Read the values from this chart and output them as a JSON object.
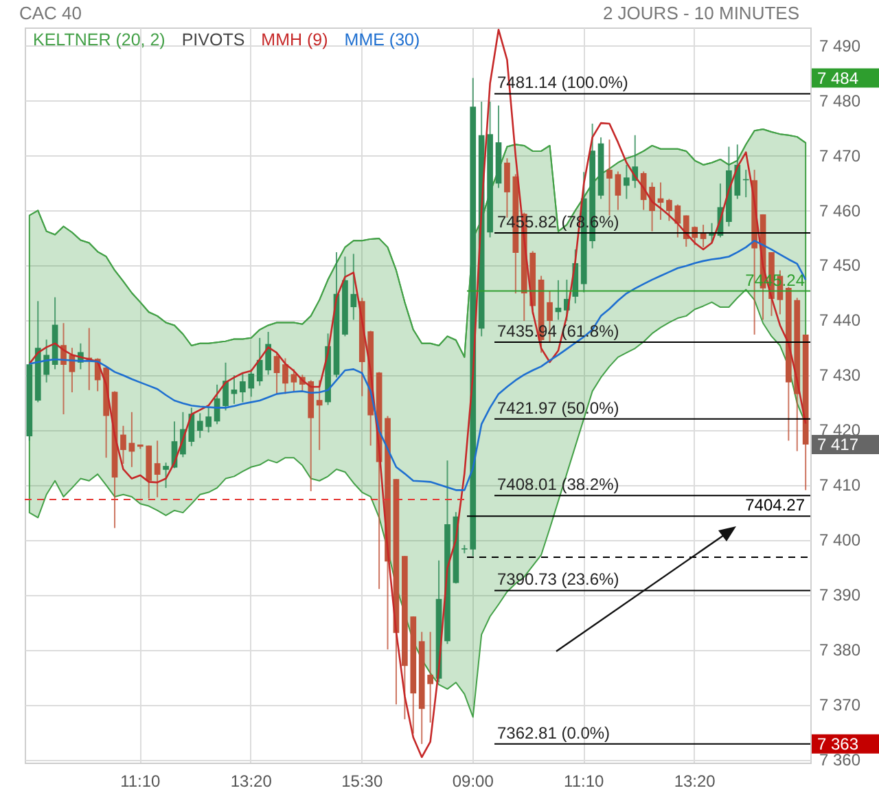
{
  "chart_data": {
    "type": "candlestick",
    "title": "CAC 40",
    "subtitle": "2 JOURS - 10 MINUTES",
    "categories": [
      null,
      null,
      null,
      null,
      null,
      null,
      null,
      null,
      null,
      null,
      null,
      null,
      null,
      "11:10",
      null,
      null,
      null,
      null,
      null,
      null,
      null,
      null,
      null,
      null,
      null,
      null,
      "13:20",
      null,
      null,
      null,
      null,
      null,
      null,
      null,
      null,
      null,
      null,
      null,
      null,
      "15:30",
      null,
      null,
      null,
      null,
      null,
      null,
      null,
      null,
      null,
      null,
      null,
      null,
      "09:00",
      null,
      null,
      null,
      null,
      null,
      null,
      null,
      null,
      null,
      null,
      null,
      null,
      "11:10",
      null,
      null,
      null,
      null,
      null,
      null,
      null,
      null,
      null,
      null,
      null,
      null,
      "13:20",
      null,
      null,
      null,
      null,
      null,
      null,
      null,
      null,
      null,
      null,
      null,
      null,
      null
    ],
    "ohlc": [
      [
        7418.8,
        7432,
        7418,
        7431.9
      ],
      [
        7425.3,
        7443.4,
        7425,
        7434.9
      ],
      [
        7430,
        7436.4,
        7428.6,
        7433.6
      ],
      [
        7431.8,
        7444.1,
        7431,
        7439.1
      ],
      [
        7435.4,
        7439.4,
        7422.8,
        7431.8
      ],
      [
        7433.6,
        7434.9,
        7426.8,
        7430.5
      ],
      [
        7432.2,
        7435.7,
        7431,
        7434.1
      ],
      [
        7433.1,
        7438.5,
        7427.2,
        7432.5
      ],
      [
        7432.9,
        7433,
        7427,
        7429
      ],
      [
        7431.3,
        7431.5,
        7414.9,
        7422.5
      ],
      [
        7426.9,
        7427,
        7402.1,
        7411.3
      ],
      [
        7419.1,
        7420.7,
        7413.8,
        7416.3
      ],
      [
        7417.6,
        7423.2,
        7413.2,
        7416
      ],
      [
        7417.3,
        7417.3,
        7416.5,
        7416.9
      ],
      [
        7417.1,
        7417.1,
        7407.5,
        7410.7
      ],
      [
        7413.9,
        7418,
        7407.7,
        7411.8
      ],
      [
        7412.7,
        7414,
        7409.4,
        7413.4
      ],
      [
        7413.1,
        7421.5,
        7413,
        7417.9
      ],
      [
        7415.5,
        7423.2,
        7415,
        7420.1
      ],
      [
        7417.8,
        7424,
        7417,
        7422.9
      ],
      [
        7419.8,
        7423,
        7418.5,
        7421.6
      ],
      [
        7420.5,
        7424,
        7419.5,
        7422.4
      ],
      [
        7421.5,
        7428.2,
        7421,
        7425.7
      ],
      [
        7424.3,
        7432.2,
        7423.5,
        7428.9
      ],
      [
        7426.5,
        7429.9,
        7424.7,
        7427.3
      ],
      [
        7426.8,
        7430.3,
        7425,
        7428.8
      ],
      [
        7427.5,
        7431,
        7426,
        7430.2
      ],
      [
        7428.8,
        7436.7,
        7428,
        7432.7
      ],
      [
        7430.8,
        7437.8,
        7430,
        7435.6
      ],
      [
        7433.4,
        7434,
        7426.5,
        7430.3
      ],
      [
        7431.9,
        7433,
        7426.5,
        7428.4
      ],
      [
        7430.1,
        7431,
        7427,
        7428.6
      ],
      [
        7429.6,
        7430,
        7427,
        7428.2
      ],
      [
        7428.8,
        7429,
        7408.8,
        7422.1
      ],
      [
        7425.4,
        7429,
        7416.3,
        7424.4
      ],
      [
        7425,
        7437.5,
        7424.5,
        7435.2
      ],
      [
        7430,
        7452.3,
        7429.5,
        7444.7
      ],
      [
        7437.3,
        7451.5,
        7437,
        7447.2
      ],
      [
        7442.3,
        7452,
        7440,
        7444.7
      ],
      [
        7443.4,
        7444,
        7426.1,
        7432.3
      ],
      [
        7437.9,
        7438,
        7417.1,
        7422.6
      ],
      [
        7430.4,
        7430.5,
        7391,
        7414.1
      ],
      [
        7422.1,
        7422.5,
        7380,
        7396
      ],
      [
        7411,
        7411,
        7370,
        7383
      ],
      [
        7397,
        7397,
        7367.3,
        7377
      ],
      [
        7386,
        7386,
        7364.7,
        7372
      ],
      [
        7381.5,
        7383.2,
        7362.8,
        7369.2
      ],
      [
        7375.4,
        7383.2,
        7366.7,
        7373.7
      ],
      [
        7374.7,
        7396.2,
        7374,
        7389.2
      ],
      [
        7381.5,
        7414.4,
        7381,
        7402.8
      ],
      [
        7392.1,
        7405,
        7392,
        7404.2
      ],
      [
        7398.2,
        7399,
        7397.5,
        7398.4
      ],
      [
        7398.2,
        7484,
        7397,
        7478.8
      ],
      [
        7438.4,
        7479.7,
        7437,
        7473.6
      ],
      [
        7455.9,
        7479.7,
        7455,
        7473.8
      ],
      [
        7464.8,
        7479,
        7464,
        7472.3
      ],
      [
        7468.6,
        7469.4,
        7458.6,
        7463.2
      ],
      [
        7466.1,
        7466.5,
        7444.8,
        7452.2
      ],
      [
        7459.3,
        7459.5,
        7439.8,
        7444.8
      ],
      [
        7452.2,
        7452.5,
        7441,
        7442.5
      ],
      [
        7447.3,
        7448,
        7434,
        7436.3
      ],
      [
        7443.2,
        7445.3,
        7436,
        7439.8
      ],
      [
        7441.4,
        7447.2,
        7440,
        7442.2
      ],
      [
        7441.7,
        7447.3,
        7439.8,
        7443.8
      ],
      [
        7444.2,
        7452.8,
        7443,
        7450.3
      ],
      [
        7446.5,
        7466.9,
        7445,
        7462.1
      ],
      [
        7454.3,
        7475.7,
        7453,
        7470.8
      ],
      [
        7462.6,
        7473.2,
        7462,
        7472.1
      ],
      [
        7467.3,
        7472.8,
        7459,
        7465.7
      ],
      [
        7466.5,
        7467,
        7460,
        7462.6
      ],
      [
        7464.4,
        7468.2,
        7462,
        7465.9
      ],
      [
        7465.3,
        7473.6,
        7464,
        7467.9
      ],
      [
        7466.7,
        7467,
        7460,
        7461.8
      ],
      [
        7464.2,
        7465,
        7456.1,
        7459.8
      ],
      [
        7462.1,
        7465,
        7458.2,
        7461.3
      ],
      [
        7461.8,
        7462,
        7458,
        7459.8
      ],
      [
        7460.8,
        7461,
        7455,
        7457.5
      ],
      [
        7459,
        7459,
        7453.3,
        7454.7
      ],
      [
        7456.9,
        7457,
        7453.6,
        7454.9
      ],
      [
        7455.8,
        7457.3,
        7453.2,
        7454.7
      ],
      [
        7455.3,
        7457.6,
        7454,
        7455.8
      ],
      [
        7455.3,
        7464.8,
        7455,
        7460.5
      ],
      [
        7457.8,
        7471.5,
        7457,
        7467.2
      ],
      [
        7462.6,
        7471.9,
        7462,
        7468.2
      ],
      [
        7465.4,
        7467.3,
        7462.3,
        7465.6
      ],
      [
        7465.4,
        7467.3,
        7437.3,
        7453
      ],
      [
        7459.2,
        7459.2,
        7440,
        7445.7
      ],
      [
        7452.3,
        7452.3,
        7440.7,
        7443.8
      ],
      [
        7448,
        7449,
        7441,
        7443.6
      ],
      [
        7445.8,
        7446,
        7418,
        7428.6
      ],
      [
        7443.6,
        7444,
        7416.1,
        7426.5
      ],
      [
        7437.3,
        7437.3,
        7409,
        7417.3
      ]
    ],
    "colors": [
      "#2e8b57",
      "#2e8b57",
      "#2e8b57",
      "#2e8b57",
      "#c0533a",
      "#c0533a",
      "#2e8b57",
      "#c0533a",
      "#c0533a",
      "#c0533a",
      "#c0533a",
      "#c0533a",
      "#c0533a",
      "#c0533a",
      "#c0533a",
      "#c0533a",
      "#2e8b57",
      "#2e8b57",
      "#2e8b57",
      "#2e8b57",
      "#2e8b57",
      "#2e8b57",
      "#2e8b57",
      "#2e8b57",
      "#2e8b57",
      "#2e8b57",
      "#2e8b57",
      "#2e8b57",
      "#2e8b57",
      "#c0533a",
      "#c0533a",
      "#c0533a",
      "#c0533a",
      "#c0533a",
      "#c0533a",
      "#2e8b57",
      "#2e8b57",
      "#2e8b57",
      "#2e8b57",
      "#c0533a",
      "#c0533a",
      "#c0533a",
      "#c0533a",
      "#c0533a",
      "#c0533a",
      "#c0533a",
      "#c0533a",
      "#c0533a",
      "#2e8b57",
      "#2e8b57",
      "#2e8b57",
      "#2e8b57",
      "#2e8b57",
      "#2e8b57",
      "#2e8b57",
      "#2e8b57",
      "#c0533a",
      "#c0533a",
      "#c0533a",
      "#c0533a",
      "#c0533a",
      "#c0533a",
      "#2e8b57",
      "#2e8b57",
      "#2e8b57",
      "#2e8b57",
      "#2e8b57",
      "#2e8b57",
      "#c0533a",
      "#c0533a",
      "#2e8b57",
      "#2e8b57",
      "#c0533a",
      "#c0533a",
      "#c0533a",
      "#c0533a",
      "#c0533a",
      "#c0533a",
      "#c0533a",
      "#c0533a",
      "#2e8b57",
      "#2e8b57",
      "#2e8b57",
      "#2e8b57",
      "#2e8b57",
      "#c0533a",
      "#c0533a",
      "#c0533a",
      "#c0533a",
      "#c0533a",
      "#c0533a",
      "#c0533a"
    ],
    "series": [
      {
        "name": "KELTNER (20, 2)",
        "type": "line",
        "color": "#43a047",
        "values": [
          7459,
          7459.9,
          7456.1,
          7455.5,
          7457,
          7455.9,
          7454.5,
          7454,
          7452.4,
          7451.5,
          7449,
          7447,
          7444.9,
          7443.2,
          7441.4,
          7440.7,
          7439.5,
          7439,
          7437.4,
          7435.3,
          7435.7,
          7435.7,
          7435.9,
          7436.1,
          7436.5,
          7436.5,
          7436.7,
          7438.2,
          7439,
          7439.5,
          7439.5,
          7439.5,
          7439.2,
          7440.7,
          7443.6,
          7447.3,
          7450.3,
          7453.2,
          7454.4,
          7454.4,
          7454.7,
          7454.8,
          7453.2,
          7449,
          7443.2,
          7438.2,
          7435.7,
          7435.7,
          7435.3,
          7437,
          7436.3,
          7433.2,
          7454.8,
          7458.2,
          7463.2,
          7467.3,
          7471.5,
          7471.9,
          7471.7,
          7470.7,
          7470.7,
          7471.7,
          7456.1,
          7457.3,
          7459.9,
          7462.3,
          7464.8,
          7466.5,
          7467.5,
          7468.6,
          7469.4,
          7469.9,
          7470.7,
          7471.7,
          7471.1,
          7471.1,
          7471.1,
          7470.7,
          7469,
          7468.2,
          7468.6,
          7469.2,
          7468.2,
          7469,
          7471.9,
          7474.4,
          7474.7,
          7474.2,
          7473.8,
          7473.6,
          7473.3,
          7472.2
        ],
        "lower": [
          7404.9,
          7404,
          7408.2,
          7410.7,
          7407.8,
          7409.4,
          7411.1,
          7410.7,
          7411.9,
          7409.9,
          7407.8,
          7408.2,
          7407.8,
          7406.5,
          7406.1,
          7405.3,
          7404.4,
          7405.3,
          7404.9,
          7406.5,
          7408.2,
          7408.6,
          7409.4,
          7411.1,
          7411.5,
          7412.4,
          7413.2,
          7413.6,
          7414.5,
          7414,
          7414.9,
          7414.9,
          7413.5,
          7411.1,
          7410.7,
          7411.5,
          7412.8,
          7412.3,
          7410.3,
          7408.6,
          7407.8,
          7404,
          7398.2,
          7391.5,
          7386.5,
          7381.5,
          7378.2,
          7375.7,
          7373.6,
          7372.8,
          7374,
          7371.9,
          7367.7,
          7382.7,
          7386,
          7388.2,
          7390.5,
          7392,
          7393.2,
          7395.2,
          7397.2,
          7402,
          7407,
          7412,
          7417,
          7422,
          7427,
          7429.5,
          7431.5,
          7433.2,
          7434,
          7434.8,
          7436,
          7437.5,
          7438.6,
          7439.5,
          7440.3,
          7440.7,
          7441.9,
          7442.5,
          7443.2,
          7442.3,
          7442.3,
          7444,
          7445.5,
          7443.6,
          7439.4,
          7437,
          7435.3,
          7431.5,
          7424.8,
          7421.1
        ],
        "upper": [
          7459,
          7459.9,
          7456.1,
          7455.5,
          7457,
          7455.9,
          7454.5,
          7454,
          7452.4,
          7451.5,
          7449,
          7447,
          7444.9,
          7443.2,
          7441.4,
          7440.7,
          7439.5,
          7439,
          7437.4,
          7435.3,
          7435.7,
          7435.7,
          7435.9,
          7436.1,
          7436.5,
          7436.5,
          7436.7,
          7438.2,
          7439,
          7439.5,
          7439.5,
          7439.5,
          7439.2,
          7440.7,
          7443.6,
          7447.3,
          7450.3,
          7453.2,
          7454.4,
          7454.4,
          7454.7,
          7454.8,
          7453.2,
          7449,
          7443.2,
          7438.2,
          7435.7,
          7435.7,
          7435.3,
          7437,
          7436.3,
          7433.2,
          7454.8,
          7458.2,
          7463.2,
          7467.3,
          7471.5,
          7471.9,
          7471.7,
          7470.7,
          7470.7,
          7471.7,
          7456.1,
          7457.3,
          7459.9,
          7462.3,
          7464.8,
          7466.5,
          7467.5,
          7468.6,
          7469.4,
          7469.9,
          7470.7,
          7471.7,
          7471.1,
          7471.1,
          7471.1,
          7470.7,
          7469,
          7468.2,
          7468.6,
          7469.2,
          7468.2,
          7469,
          7471.9,
          7474.4,
          7474.7,
          7474.2,
          7473.8,
          7473.6,
          7473.3,
          7472.2
        ]
      },
      {
        "name": "MMH (9)",
        "type": "line",
        "color": "#c62828",
        "values": [
          7432,
          7434,
          7435,
          7435.7,
          7434.5,
          7433.6,
          7433.2,
          7432.8,
          7432.4,
          7428.2,
          7419,
          7412.8,
          7411.1,
          7411.7,
          7410.5,
          7410.4,
          7411.1,
          7414,
          7418.2,
          7422.8,
          7423.6,
          7424.4,
          7426.5,
          7428.6,
          7429.5,
          7430.3,
          7430.7,
          7432.8,
          7435,
          7434,
          7432,
          7430.7,
          7429,
          7427.8,
          7427.8,
          7434,
          7444,
          7447.8,
          7448.6,
          7439.8,
          7430.7,
          7416.5,
          7398.2,
          7383.2,
          7371.5,
          7364,
          7360.4,
          7363.2,
          7376.5,
          7394.8,
          7400,
          7412,
          7430,
          7460,
          7483,
          7492.8,
          7487.3,
          7469.8,
          7454.8,
          7441.5,
          7434.8,
          7432.3,
          7434.4,
          7440.7,
          7450.7,
          7464.8,
          7473.2,
          7475.8,
          7475.7,
          7472.3,
          7468.6,
          7466.1,
          7464,
          7461.5,
          7460.3,
          7459,
          7457.5,
          7455.7,
          7454,
          7452.8,
          7454,
          7458.2,
          7463.6,
          7467.8,
          7470.5,
          7461.5,
          7449.8,
          7444,
          7439,
          7435.7,
          7429,
          7421.1
        ]
      },
      {
        "name": "MME (30)",
        "type": "line",
        "color": "#1e6fd0",
        "values": [
          7432,
          7432.3,
          7432.6,
          7432.8,
          7432.7,
          7432.6,
          7432.5,
          7432.5,
          7432.4,
          7431.5,
          7430.5,
          7429.9,
          7429.2,
          7428.6,
          7428,
          7427.4,
          7426.3,
          7425.3,
          7424.8,
          7424.4,
          7424.2,
          7424.1,
          7424,
          7424,
          7424.3,
          7424.7,
          7425,
          7425.3,
          7425.9,
          7426.5,
          7426.7,
          7426.9,
          7427,
          7426.7,
          7426.8,
          7427.2,
          7429,
          7430.8,
          7431,
          7430.3,
          7427,
          7419.8,
          7416.5,
          7413.2,
          7412,
          7410.7,
          7410.6,
          7410.5,
          7410,
          7409.5,
          7409,
          7409,
          7413,
          7421,
          7424,
          7426.5,
          7427.8,
          7429,
          7430,
          7430.8,
          7431.5,
          7432.6,
          7433.6,
          7434.7,
          7435.8,
          7436.9,
          7438.2,
          7440.7,
          7442,
          7443.5,
          7444.8,
          7445.7,
          7446.5,
          7447.3,
          7448,
          7448.7,
          7449.4,
          7449.8,
          7450.3,
          7450.7,
          7451,
          7451.2,
          7451.5,
          7452.3,
          7453.2,
          7454.4,
          7453.6,
          7452.8,
          7451.9,
          7451,
          7450.2,
          7447.3
        ]
      }
    ],
    "ylim": [
      7359.4,
      7493.2
    ],
    "yticks": [
      {
        "value": 7360,
        "label": "7 360"
      },
      {
        "value": 7370,
        "label": "7 370"
      },
      {
        "value": 7380,
        "label": "7 380"
      },
      {
        "value": 7390,
        "label": "7 390"
      },
      {
        "value": 7400,
        "label": "7 400"
      },
      {
        "value": 7410,
        "label": "7 410"
      },
      {
        "value": 7420,
        "label": "7 420"
      },
      {
        "value": 7430,
        "label": "7 430"
      },
      {
        "value": 7440,
        "label": "7 440"
      },
      {
        "value": 7450,
        "label": "7 450"
      },
      {
        "value": 7460,
        "label": "7 460"
      },
      {
        "value": 7470,
        "label": "7 470"
      },
      {
        "value": 7480,
        "label": "7 480"
      },
      {
        "value": 7490,
        "label": "7 490"
      }
    ],
    "grid": true,
    "legend": "top left",
    "ref_lines": [
      {
        "axis": "y",
        "value": 7481.14,
        "label": "7481.14  (100.0%)"
      },
      {
        "axis": "y",
        "value": 7455.82,
        "label": "7455.82  (78.6%)"
      },
      {
        "axis": "y",
        "value": 7435.94,
        "label": "7435.94  (61.8%)"
      },
      {
        "axis": "y",
        "value": 7421.97,
        "label": "7421.97  (50.0%)"
      },
      {
        "axis": "y",
        "value": 7408.01,
        "label": "7408.01  (38.2%)"
      },
      {
        "axis": "y",
        "value": 7390.73,
        "label": "7390.73  (23.6%)"
      },
      {
        "axis": "y",
        "value": 7362.81,
        "label": "7362.81  (0.0%)"
      },
      {
        "axis": "y",
        "value": 7445.24,
        "label": "7445.24",
        "color": "#2e9e2e"
      },
      {
        "axis": "y",
        "value": 7404.27,
        "label": "7404.27",
        "color": "#000000"
      },
      {
        "axis": "y",
        "value": 7407.3,
        "color": "#e53935",
        "line_style": "dashed"
      },
      {
        "axis": "y",
        "value": 7396.8,
        "color": "#000000",
        "line_style": "dashed"
      }
    ],
    "annotations": [
      "PIVOTS",
      "7 484",
      "7 417",
      "7 363"
    ]
  }
}
